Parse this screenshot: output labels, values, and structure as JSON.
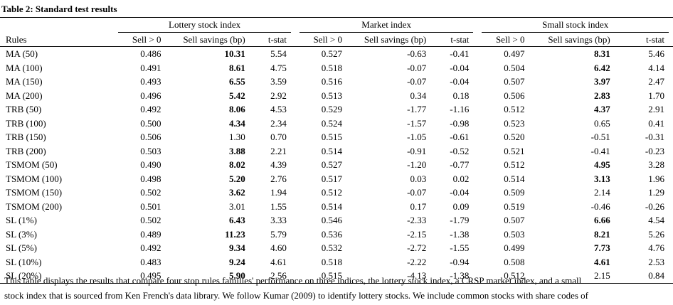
{
  "title": "Table 2:  Standard test results",
  "groups": [
    "Lottery stock index",
    "Market index",
    "Small stock index"
  ],
  "columns": [
    "Rules",
    "Sell > 0",
    "Sell savings (bp)",
    "t-stat",
    "Sell > 0",
    "Sell savings (bp)",
    "t-stat",
    "Sell > 0",
    "Sell savings (bp)",
    "t-stat"
  ],
  "rows": [
    {
      "rule": "MA (50)",
      "cells": [
        "0.486",
        "10.31",
        "5.54",
        "0.527",
        "-0.63",
        "-0.41",
        "0.497",
        "8.31",
        "5.46"
      ],
      "bold": [
        1,
        7
      ]
    },
    {
      "rule": "MA (100)",
      "cells": [
        "0.491",
        "8.61",
        "4.75",
        "0.518",
        "-0.07",
        "-0.04",
        "0.504",
        "6.42",
        "4.14"
      ],
      "bold": [
        1,
        7
      ]
    },
    {
      "rule": "MA (150)",
      "cells": [
        "0.493",
        "6.55",
        "3.59",
        "0.516",
        "-0.07",
        "-0.04",
        "0.507",
        "3.97",
        "2.47"
      ],
      "bold": [
        1,
        7
      ]
    },
    {
      "rule": "MA (200)",
      "cells": [
        "0.496",
        "5.42",
        "2.92",
        "0.513",
        "0.34",
        "0.18",
        "0.506",
        "2.83",
        "1.70"
      ],
      "bold": [
        1,
        7
      ]
    },
    {
      "rule": "TRB (50)",
      "cells": [
        "0.492",
        "8.06",
        "4.53",
        "0.529",
        "-1.77",
        "-1.16",
        "0.512",
        "4.37",
        "2.91"
      ],
      "bold": [
        1,
        7
      ]
    },
    {
      "rule": "TRB (100)",
      "cells": [
        "0.500",
        "4.34",
        "2.34",
        "0.524",
        "-1.57",
        "-0.98",
        "0.523",
        "0.65",
        "0.41"
      ],
      "bold": [
        1
      ]
    },
    {
      "rule": "TRB (150)",
      "cells": [
        "0.506",
        "1.30",
        "0.70",
        "0.515",
        "-1.05",
        "-0.61",
        "0.520",
        "-0.51",
        "-0.31"
      ],
      "bold": []
    },
    {
      "rule": "TRB (200)",
      "cells": [
        "0.503",
        "3.88",
        "2.21",
        "0.514",
        "-0.91",
        "-0.52",
        "0.521",
        "-0.41",
        "-0.23"
      ],
      "bold": [
        1
      ]
    },
    {
      "rule": "TSMOM (50)",
      "cells": [
        "0.490",
        "8.02",
        "4.39",
        "0.527",
        "-1.20",
        "-0.77",
        "0.512",
        "4.95",
        "3.28"
      ],
      "bold": [
        1,
        7
      ]
    },
    {
      "rule": "TSMOM (100)",
      "cells": [
        "0.498",
        "5.20",
        "2.76",
        "0.517",
        "0.03",
        "0.02",
        "0.514",
        "3.13",
        "1.96"
      ],
      "bold": [
        1,
        7
      ]
    },
    {
      "rule": "TSMOM (150)",
      "cells": [
        "0.502",
        "3.62",
        "1.94",
        "0.512",
        "-0.07",
        "-0.04",
        "0.509",
        "2.14",
        "1.29"
      ],
      "bold": [
        1
      ]
    },
    {
      "rule": "TSMOM (200)",
      "cells": [
        "0.501",
        "3.01",
        "1.55",
        "0.514",
        "0.17",
        "0.09",
        "0.519",
        "-0.46",
        "-0.26"
      ],
      "bold": []
    },
    {
      "rule": "SL (1%)",
      "cells": [
        "0.502",
        "6.43",
        "3.33",
        "0.546",
        "-2.33",
        "-1.79",
        "0.507",
        "6.66",
        "4.54"
      ],
      "bold": [
        1,
        7
      ]
    },
    {
      "rule": "SL (3%)",
      "cells": [
        "0.489",
        "11.23",
        "5.79",
        "0.536",
        "-2.15",
        "-1.38",
        "0.503",
        "8.21",
        "5.26"
      ],
      "bold": [
        1,
        7
      ]
    },
    {
      "rule": "SL (5%)",
      "cells": [
        "0.492",
        "9.34",
        "4.60",
        "0.532",
        "-2.72",
        "-1.55",
        "0.499",
        "7.73",
        "4.76"
      ],
      "bold": [
        1,
        7
      ]
    },
    {
      "rule": "SL (10%)",
      "cells": [
        "0.483",
        "9.24",
        "4.61",
        "0.518",
        "-2.22",
        "-0.94",
        "0.508",
        "4.61",
        "2.53"
      ],
      "bold": [
        1,
        7
      ]
    },
    {
      "rule": "SL (20%)",
      "cells": [
        "0.495",
        "5.90",
        "2.56",
        "0.515",
        "-4.13",
        "-1.38",
        "0.512",
        "2.15",
        "0.84"
      ],
      "bold": [
        1
      ]
    }
  ],
  "caption_lines": [
    "This table displays the results that compare four stop rules families' performance on three indices, the lottery stock index, a CRSP market index, and a small",
    "stock index that is sourced from Ken French's data library. We follow Kumar (2009) to identify lottery stocks. We include common stocks with share codes of"
  ]
}
